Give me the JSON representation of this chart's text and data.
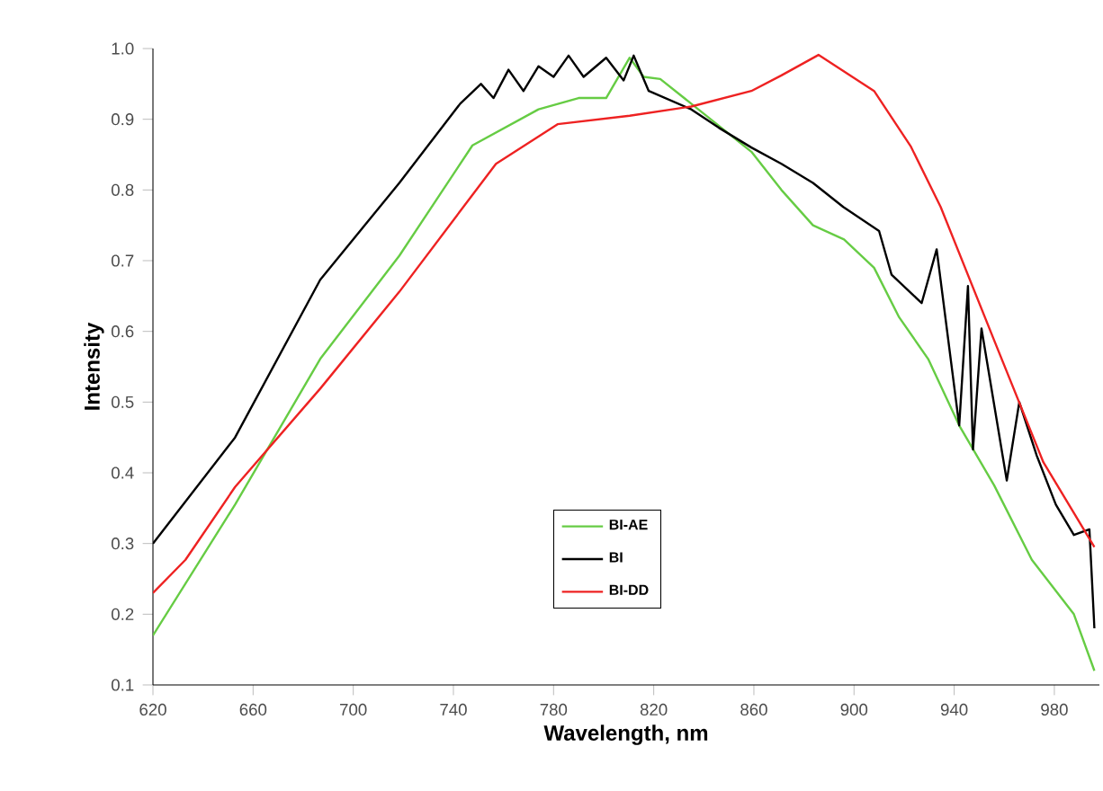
{
  "chart_data": {
    "type": "line",
    "xlabel": "Wavelength, nm",
    "ylabel": "Intensity",
    "xlim": [
      620,
      998
    ],
    "ylim": [
      0.1,
      1.0
    ],
    "xticks": [
      620,
      660,
      700,
      740,
      780,
      820,
      860,
      900,
      940,
      980
    ],
    "yticks": [
      0.1,
      0.2,
      0.3,
      0.4,
      0.5,
      0.6,
      0.7,
      0.8,
      0.9,
      {
        "value": 1.0,
        "label": "1.0"
      }
    ],
    "legend": "bottom",
    "grid": false,
    "marker": "none",
    "line_style": "solid",
    "series": [
      {
        "name": "BI-AE",
        "color": "#66cc44",
        "x": [
          620,
          652.8,
          686.8,
          718.4,
          747.6,
          774,
          790,
          801,
          810.4,
          816,
          822.6,
          835,
          859,
          871,
          883.6,
          896,
          908,
          918,
          929.6,
          942,
          956,
          971,
          987.8,
          996
        ],
        "values": [
          0.17,
          0.355,
          0.561,
          0.707,
          0.863,
          0.914,
          0.93,
          0.93,
          0.987,
          0.96,
          0.957,
          0.922,
          0.854,
          0.8,
          0.75,
          0.73,
          0.69,
          0.62,
          0.561,
          0.467,
          0.382,
          0.277,
          0.2,
          0.12
        ]
      },
      {
        "name": "BI",
        "color": "#000000",
        "x": [
          620,
          652.8,
          686.8,
          718.4,
          742.7,
          751,
          756,
          762,
          768,
          774,
          780,
          786,
          792,
          801,
          808,
          812,
          818,
          835,
          846,
          859,
          871,
          883.6,
          895.7,
          910,
          915,
          927,
          933,
          942,
          945.5,
          947.5,
          950.9,
          961,
          966,
          973,
          980.6,
          987.8,
          994,
          996
        ],
        "values": [
          0.3,
          0.45,
          0.673,
          0.81,
          0.922,
          0.95,
          0.93,
          0.97,
          0.94,
          0.975,
          0.96,
          0.99,
          0.96,
          0.987,
          0.955,
          0.99,
          0.94,
          0.914,
          0.888,
          0.86,
          0.837,
          0.81,
          0.776,
          0.742,
          0.68,
          0.64,
          0.716,
          0.467,
          0.664,
          0.433,
          0.604,
          0.389,
          0.5,
          0.424,
          0.355,
          0.312,
          0.32,
          0.18
        ]
      },
      {
        "name": "BI-DD",
        "color": "#ee2222",
        "x": [
          620,
          633,
          652.8,
          686.8,
          718.4,
          757,
          781.6,
          810.4,
          835,
          859,
          871,
          885.8,
          908,
          922.6,
          934.6,
          956,
          975.6,
          996
        ],
        "values": [
          0.23,
          0.277,
          0.38,
          0.519,
          0.656,
          0.837,
          0.893,
          0.905,
          0.918,
          0.94,
          0.962,
          0.991,
          0.94,
          0.862,
          0.776,
          0.587,
          0.415,
          0.295
        ]
      }
    ]
  }
}
